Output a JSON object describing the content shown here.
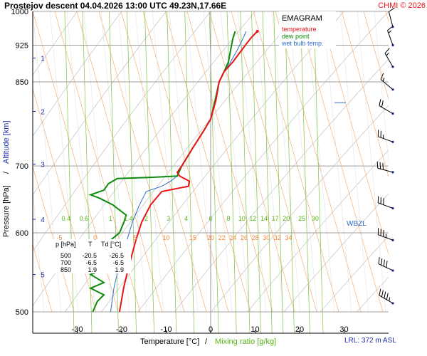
{
  "chart_data": {
    "type": "emagram",
    "title": "Prostejov  descent  04.04.2026 13:00 UTC  49.23N,17.66E",
    "credit": "CHMI © 2026",
    "xlabel": "Temperature [°C]",
    "xlabel_sep": "/",
    "xlabel2": "Mixing ratio [g/kg]",
    "ylabel": "Pressure [hPa]",
    "ylabel_sep": "/",
    "ylabel2": "Altitude [km]",
    "xlim": [
      -40,
      40
    ],
    "ylim_hpa": [
      1000,
      500
    ],
    "x_ticks": [
      -30,
      -20,
      -10,
      0,
      10,
      20,
      30
    ],
    "p_ticks": [
      500,
      600,
      700,
      850,
      925,
      1000
    ],
    "altitude_ticks": [
      {
        "km": 1,
        "p": 898
      },
      {
        "km": 2,
        "p": 794
      },
      {
        "km": 3,
        "p": 703
      },
      {
        "km": 4,
        "p": 619
      },
      {
        "km": 5,
        "p": 545
      }
    ],
    "isotherm_labels": [
      -5,
      0,
      5,
      10,
      15,
      20,
      22,
      24,
      26,
      28,
      30,
      32,
      34
    ],
    "isotherm_label_p": 590,
    "mixing_ratio_labels": [
      "0.4",
      "0.6",
      "1",
      "1.4",
      "2",
      "3",
      "4",
      "6",
      "8",
      "10",
      "12",
      "14",
      "17",
      "20",
      "25",
      "30"
    ],
    "mixing_ratio_label_x": [
      -32.5,
      -28.5,
      -22.5,
      -18.5,
      -14.5,
      -9.5,
      -5.5,
      0,
      4,
      7,
      9.5,
      12,
      14.5,
      17,
      20.5,
      23.5
    ],
    "mixing_ratio_label_p": 620,
    "legend": {
      "title": "EMAGRAM",
      "items": [
        {
          "label": "temperature",
          "color": "#e8141a"
        },
        {
          "label": "dew point",
          "color": "#0c8a0c"
        },
        {
          "label": "wet bulb temp.",
          "color": "#2e6fd0"
        }
      ]
    },
    "table": {
      "headers": [
        "p [hPa]",
        "T",
        "Td [°C]"
      ],
      "rows": [
        [
          "500",
          "-20.5",
          "-26.5"
        ],
        [
          "700",
          "-6.5",
          "-6.5"
        ],
        [
          "850",
          "1.9",
          "1.9"
        ]
      ]
    },
    "wbzl_label": "WBZL",
    "wbzl_p": 810,
    "lrl_label": "LRL: 372 m ASL",
    "series": [
      {
        "name": "temperature",
        "color": "#e8141a",
        "points": [
          [
            -20.5,
            500
          ],
          [
            -19.5,
            530
          ],
          [
            -18.2,
            560
          ],
          [
            -16.8,
            590
          ],
          [
            -15.5,
            615
          ],
          [
            -13.5,
            640
          ],
          [
            -11,
            660
          ],
          [
            -5,
            668
          ],
          [
            -4.8,
            676
          ],
          [
            -7,
            684
          ],
          [
            -7.5,
            690
          ],
          [
            -6.5,
            700
          ],
          [
            -4,
            730
          ],
          [
            -1.5,
            760
          ],
          [
            0,
            780
          ],
          [
            1.2,
            815
          ],
          [
            1.9,
            850
          ],
          [
            3,
            870
          ],
          [
            5,
            890
          ],
          [
            7,
            915
          ],
          [
            9,
            940
          ],
          [
            10.5,
            955
          ]
        ]
      },
      {
        "name": "dew point",
        "color": "#0c8a0c",
        "points": [
          [
            -26.5,
            500
          ],
          [
            -25.5,
            512
          ],
          [
            -24,
            520
          ],
          [
            -27,
            528
          ],
          [
            -24,
            535
          ],
          [
            -27,
            545
          ],
          [
            -23.5,
            552
          ],
          [
            -25,
            562
          ],
          [
            -22.5,
            575
          ],
          [
            -22.5,
            590
          ],
          [
            -20.5,
            600
          ],
          [
            -19.5,
            615
          ],
          [
            -19,
            625
          ],
          [
            -22,
            640
          ],
          [
            -25,
            650
          ],
          [
            -27,
            655
          ],
          [
            -24,
            662
          ],
          [
            -23,
            672
          ],
          [
            -21,
            680
          ],
          [
            -13,
            682
          ],
          [
            -7.5,
            684
          ],
          [
            -6.5,
            700
          ],
          [
            -4,
            730
          ],
          [
            -1.5,
            760
          ],
          [
            0,
            780
          ],
          [
            1,
            815
          ],
          [
            1.9,
            850
          ],
          [
            3,
            870
          ],
          [
            4,
            890
          ],
          [
            4.5,
            915
          ],
          [
            5,
            940
          ],
          [
            5.5,
            955
          ]
        ]
      },
      {
        "name": "wet bulb temp.",
        "color": "#2e6fd0",
        "points": [
          [
            -22.5,
            500
          ],
          [
            -21.7,
            530
          ],
          [
            -20.4,
            560
          ],
          [
            -18.8,
            590
          ],
          [
            -17.6,
            615
          ],
          [
            -16,
            640
          ],
          [
            -14.5,
            660
          ],
          [
            -11,
            668
          ],
          [
            -9,
            676
          ],
          [
            -7.5,
            684
          ],
          [
            -6.5,
            700
          ],
          [
            -4,
            730
          ],
          [
            -1.5,
            760
          ],
          [
            0,
            780
          ],
          [
            1.1,
            815
          ],
          [
            1.9,
            850
          ],
          [
            3,
            870
          ],
          [
            4.5,
            890
          ],
          [
            6,
            915
          ],
          [
            7.3,
            940
          ],
          [
            8,
            955
          ]
        ]
      }
    ],
    "winds": [
      {
        "p": 510,
        "dir": 300,
        "kt": 45
      },
      {
        "p": 550,
        "dir": 295,
        "kt": 40
      },
      {
        "p": 590,
        "dir": 290,
        "kt": 35
      },
      {
        "p": 635,
        "dir": 290,
        "kt": 30
      },
      {
        "p": 690,
        "dir": 285,
        "kt": 30
      },
      {
        "p": 740,
        "dir": 290,
        "kt": 25
      },
      {
        "p": 790,
        "dir": 300,
        "kt": 20
      },
      {
        "p": 835,
        "dir": 310,
        "kt": 15
      },
      {
        "p": 880,
        "dir": 330,
        "kt": 15
      },
      {
        "p": 925,
        "dir": 340,
        "kt": 15
      },
      {
        "p": 965,
        "dir": 345,
        "kt": 10
      }
    ]
  }
}
